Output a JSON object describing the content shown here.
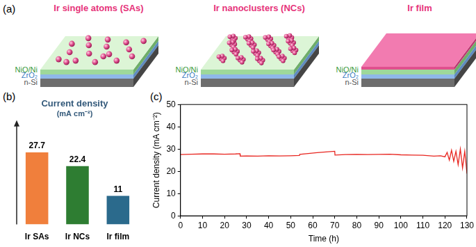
{
  "diagram": {
    "panel_label": "(a)",
    "structures": [
      {
        "title": "Ir single atoms (SAs)",
        "layers": [
          "NiO/Ni",
          "ZrO₂",
          "n-Si"
        ]
      },
      {
        "title": "Ir nanoclusters (NCs)",
        "layers": [
          "NiO/Ni",
          "ZrO₂",
          "n-Si"
        ]
      },
      {
        "title": "Ir film",
        "layers": [
          "NiO/Ni",
          "ZrO₂",
          "n-Si"
        ]
      }
    ]
  },
  "chart_data": [
    {
      "panel_label": "(b)",
      "type": "bar",
      "title": "Current density",
      "subtitle": "(mA cm⁻²)",
      "categories": [
        "Ir SAs",
        "Ir NCs",
        "Ir film"
      ],
      "values": [
        27.7,
        22.4,
        11
      ],
      "colors": [
        "#f07f3c",
        "#2e7d32",
        "#2b6a8c"
      ],
      "ylim": [
        0,
        39
      ],
      "data_labels": true,
      "tick_labels": "x",
      "grid": false
    },
    {
      "panel_label": "(c)",
      "type": "line",
      "xlabel": "Time (h)",
      "ylabel": "Current density (mA cm⁻²)",
      "x": [
        0,
        5,
        10,
        15,
        20,
        25,
        27,
        27.1,
        30,
        35,
        40,
        45,
        50,
        54,
        54.1,
        58,
        62,
        66,
        70,
        70.1,
        75,
        80,
        85,
        90,
        95,
        100,
        105,
        110,
        115,
        118,
        120,
        121,
        122,
        123,
        124,
        125,
        126,
        127,
        128,
        129,
        130
      ],
      "values": [
        27.5,
        27.7,
        27.8,
        27.8,
        27.7,
        27.8,
        27.9,
        26.8,
        26.9,
        26.8,
        27.0,
        26.9,
        27.0,
        27.1,
        27.6,
        28.0,
        28.4,
        28.7,
        29.0,
        27.3,
        27.5,
        27.6,
        27.5,
        27.6,
        27.7,
        27.4,
        27.3,
        27.2,
        26.8,
        27.0,
        26.5,
        28.5,
        25.0,
        29.5,
        24.5,
        29.0,
        23.0,
        30.0,
        21.5,
        29.0,
        19.0
      ],
      "color": "#e8251f",
      "xlim": [
        0,
        130
      ],
      "xticks": [
        0,
        10,
        20,
        30,
        40,
        50,
        60,
        70,
        80,
        90,
        100,
        110,
        120,
        130
      ],
      "ylim": [
        0,
        50
      ],
      "yticks": [
        0,
        10,
        20,
        30,
        40,
        50
      ],
      "grid": false
    }
  ]
}
